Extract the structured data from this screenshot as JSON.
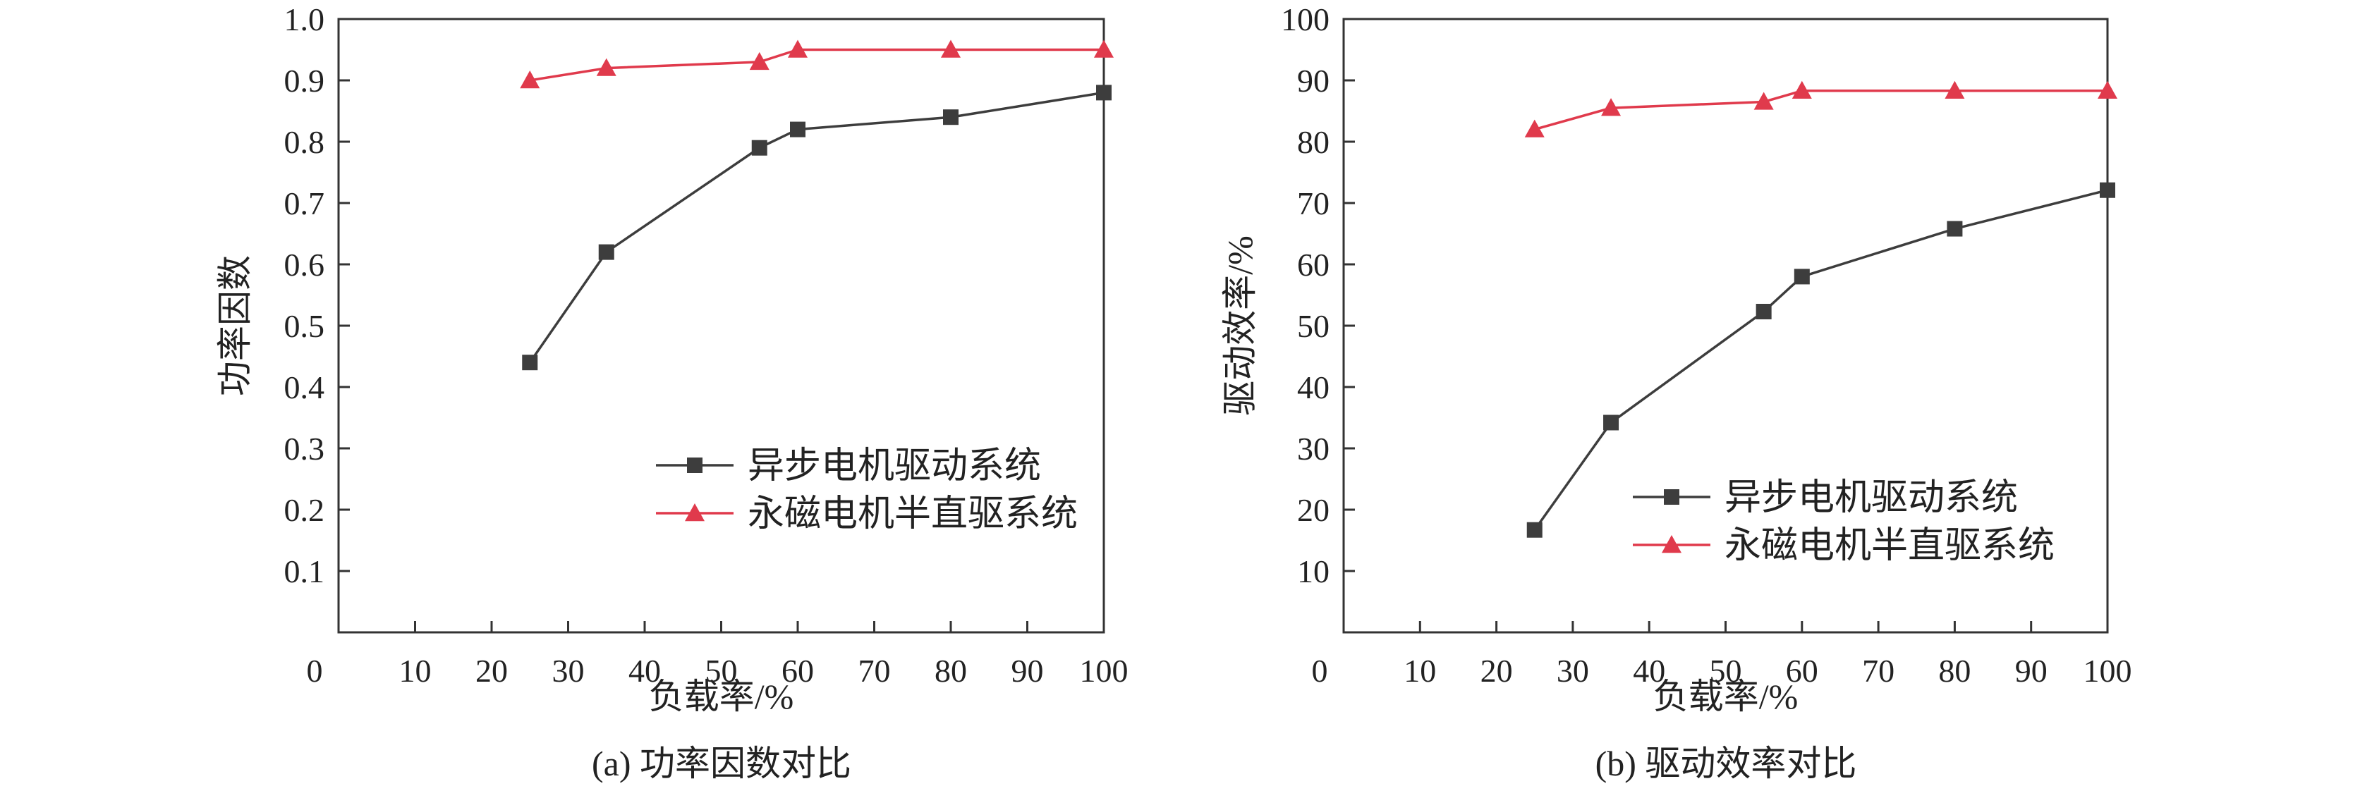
{
  "colors": {
    "async": "#3d3d3d",
    "pm": "#e03a4c",
    "axis": "#333333"
  },
  "chart_data": [
    {
      "type": "line",
      "caption": "(a) 功率因数对比",
      "xlabel": "负载率/%",
      "ylabel": "功率因数",
      "xlim": [
        0,
        100
      ],
      "ylim": [
        0,
        1.0
      ],
      "xticks": [
        "0",
        "10",
        "20",
        "30",
        "40",
        "50",
        "60",
        "70",
        "80",
        "90",
        "100"
      ],
      "xtick_values": [
        0,
        10,
        20,
        30,
        40,
        50,
        60,
        70,
        80,
        90,
        100
      ],
      "yticks": [
        "0.1",
        "0.2",
        "0.3",
        "0.4",
        "0.5",
        "0.6",
        "0.7",
        "0.8",
        "0.9",
        "1.0"
      ],
      "ytick_values": [
        0.1,
        0.2,
        0.3,
        0.4,
        0.5,
        0.6,
        0.7,
        0.8,
        0.9,
        1.0
      ],
      "origin_label": "0",
      "grid": false,
      "legend_position": "lower-right",
      "series": [
        {
          "name": "异步电机驱动系统",
          "marker": "square",
          "color_key": "async",
          "x": [
            25,
            35,
            55,
            60,
            80,
            100
          ],
          "y": [
            0.44,
            0.62,
            0.79,
            0.82,
            0.84,
            0.88
          ]
        },
        {
          "name": "永磁电机半直驱系统",
          "marker": "triangle",
          "color_key": "pm",
          "x": [
            25,
            35,
            55,
            60,
            80,
            100
          ],
          "y": [
            0.9,
            0.92,
            0.93,
            0.95,
            0.95,
            0.95
          ]
        }
      ]
    },
    {
      "type": "line",
      "caption": "(b) 驱动效率对比",
      "xlabel": "负载率/%",
      "ylabel": "驱动效率/%",
      "xlim": [
        0,
        100
      ],
      "ylim": [
        0,
        100
      ],
      "xticks": [
        "0",
        "10",
        "20",
        "30",
        "40",
        "50",
        "60",
        "70",
        "80",
        "90",
        "100"
      ],
      "xtick_values": [
        0,
        10,
        20,
        30,
        40,
        50,
        60,
        70,
        80,
        90,
        100
      ],
      "yticks": [
        "10",
        "20",
        "30",
        "40",
        "50",
        "60",
        "70",
        "80",
        "90",
        "100"
      ],
      "ytick_values": [
        10,
        20,
        30,
        40,
        50,
        60,
        70,
        80,
        90,
        100
      ],
      "origin_label": "0",
      "grid": false,
      "legend_position": "lower-right",
      "series": [
        {
          "name": "异步电机驱动系统",
          "marker": "square",
          "color_key": "async",
          "x": [
            25,
            35,
            55,
            60,
            80,
            100
          ],
          "y": [
            16.7,
            34.2,
            52.3,
            58.0,
            65.8,
            72.1
          ]
        },
        {
          "name": "永磁电机半直驱系统",
          "marker": "triangle",
          "color_key": "pm",
          "x": [
            25,
            35,
            55,
            60,
            80,
            100
          ],
          "y": [
            82.0,
            85.5,
            86.5,
            88.3,
            88.3,
            88.3
          ]
        }
      ]
    }
  ]
}
